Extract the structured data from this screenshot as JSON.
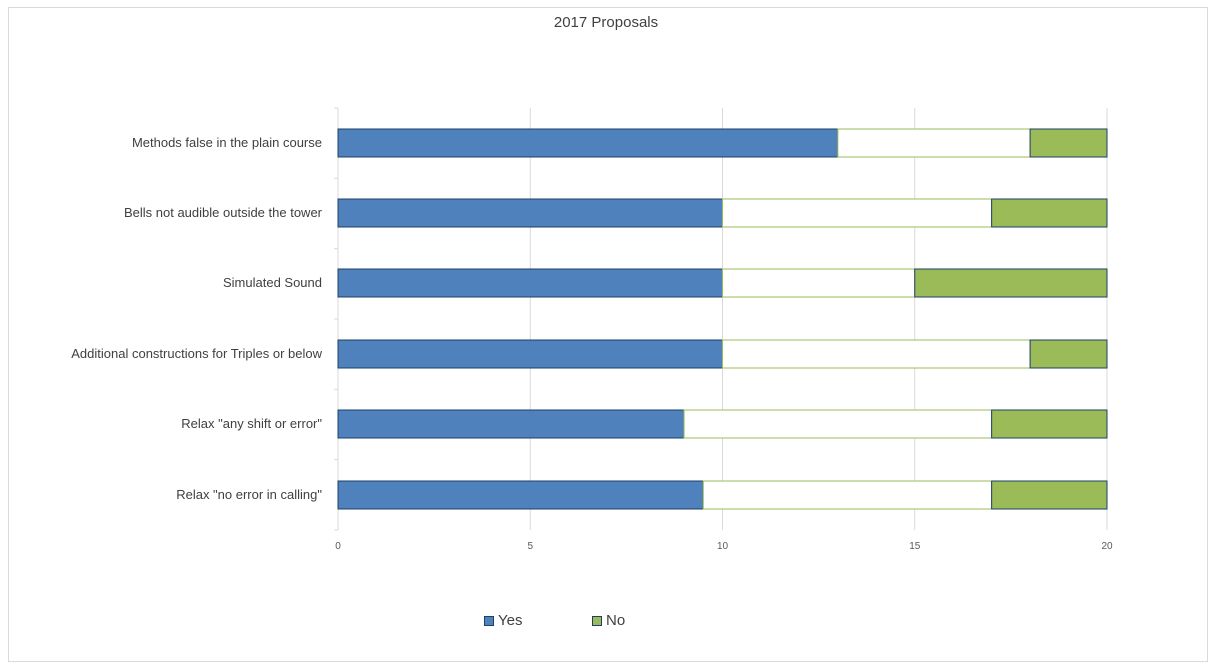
{
  "chart_data": {
    "type": "bar",
    "orientation": "horizontal",
    "stacked": true,
    "title": "2017 Proposals",
    "categories": [
      "Methods false in the plain course",
      "Bells not audible outside the tower",
      "Simulated Sound",
      "Additional constructions for Triples or below",
      "Relax \"any shift or error\"",
      "Relax \"no error in calling\""
    ],
    "series": [
      {
        "name": "Yes",
        "values": [
          13,
          10,
          10,
          10,
          9,
          9.5
        ],
        "color": "#4f81bd"
      },
      {
        "name": "",
        "values": [
          5,
          7,
          5,
          8,
          8,
          7.5
        ],
        "color": "#ffffff"
      },
      {
        "name": "No",
        "values": [
          2,
          3,
          5,
          2,
          3,
          3
        ],
        "color": "#9bbb59"
      }
    ],
    "xlim": [
      0,
      20
    ],
    "xticks": [
      "0",
      "5",
      "10",
      "15",
      "20"
    ],
    "grid": true,
    "legend_position": "bottom"
  }
}
